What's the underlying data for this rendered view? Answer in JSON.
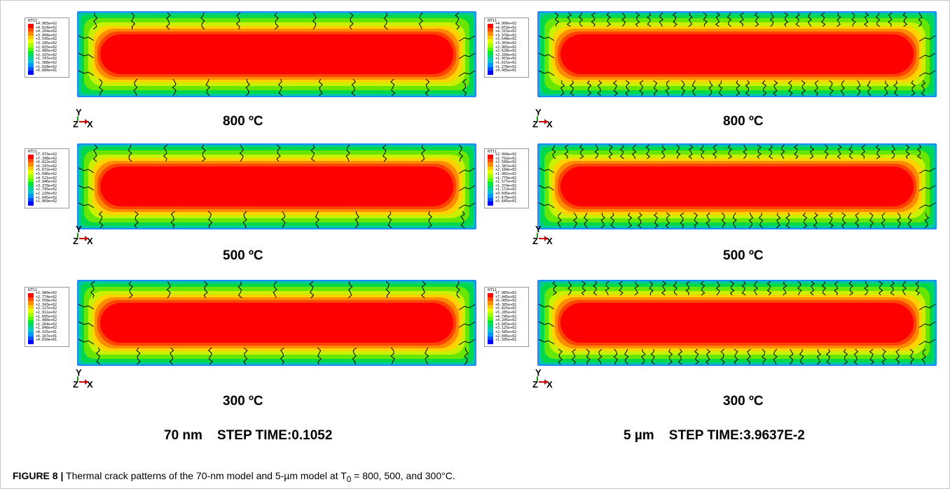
{
  "legend_title": "NT11",
  "legend_colors": [
    "#ff0000",
    "#ff4a00",
    "#ff8c00",
    "#ffc800",
    "#e6ff00",
    "#a5ff00",
    "#55ff00",
    "#00e63c",
    "#00d28c",
    "#00c8c8",
    "#0096ff",
    "#0050ff",
    "#0000ff"
  ],
  "panels": [
    {
      "temp_label": "800 ºC",
      "values": [
        "+4.983e+02",
        "+4.624e+02",
        "+4.264e+02",
        "+3.904e+02",
        "+3.545e+02",
        "+3.185e+02",
        "+2.825e+02",
        "+2.466e+02",
        "+2.107e+02",
        "+1.747e+02",
        "+1.388e+02",
        "+1.028e+02",
        "+6.684e+01"
      ]
    },
    {
      "temp_label": "800 ºC",
      "values": [
        "+4.990e+02",
        "+4.653e+02",
        "+4.315e+02",
        "+3.978e+02",
        "+3.640e+02",
        "+3.303e+02",
        "+2.965e+02",
        "+2.628e+02",
        "+2.290e+02",
        "+1.953e+02",
        "+1.615e+02",
        "+1.278e+02",
        "+9.405e+01"
      ]
    },
    {
      "temp_label": "500 ºC",
      "values": [
        "+7.973e+02",
        "+7.398e+02",
        "+6.822e+02",
        "+6.247e+02",
        "+5.672e+02",
        "+5.096e+02",
        "+4.521e+02",
        "+3.946e+02",
        "+3.370e+02",
        "+2.795e+02",
        "+2.220e+02",
        "+1.645e+02",
        "+1.069e+02"
      ]
    },
    {
      "temp_label": "500 ºC",
      "values": [
        "+2.994e+02",
        "+2.792e+02",
        "+2.589e+02",
        "+2.387e+02",
        "+2.184e+02",
        "+1.982e+02",
        "+1.779e+02",
        "+1.577e+02",
        "+1.374e+02",
        "+1.172e+02",
        "+9.695e+01",
        "+7.670e+01",
        "+5.645e+01"
      ]
    },
    {
      "temp_label": "300 ºC",
      "values": [
        "+2.980e+02",
        "+2.774e+02",
        "+2.558e+02",
        "+2.343e+02",
        "+2.127e+02",
        "+1.911e+02",
        "+1.695e+02",
        "+1.480e+02",
        "+1.264e+02",
        "+1.048e+02",
        "+8.325e+01",
        "+6.167e+01",
        "+4.010e+01"
      ]
    },
    {
      "temp_label": "300 ºC",
      "values": [
        "+7.985e+02",
        "+7.445e+02",
        "+6.905e+02",
        "+6.365e+02",
        "+5.825e+02",
        "+5.285e+02",
        "+4.745e+02",
        "+4.205e+02",
        "+3.665e+02",
        "+3.125e+02",
        "+2.585e+02",
        "+2.045e+02",
        "+1.505e+02"
      ]
    }
  ],
  "axis": {
    "y": "Y",
    "z": "Z",
    "x": "X"
  },
  "step_labels": [
    "70 nm    STEP TIME:0.1052",
    "5 µm    STEP TIME:3.9637E-2"
  ],
  "caption": {
    "label": "FIGURE 8 |",
    "text": " Thermal crack patterns of the 70-nm model and 5-µm model at T",
    "sub": "0",
    "tail": " = 800, 500, and 300°C."
  }
}
